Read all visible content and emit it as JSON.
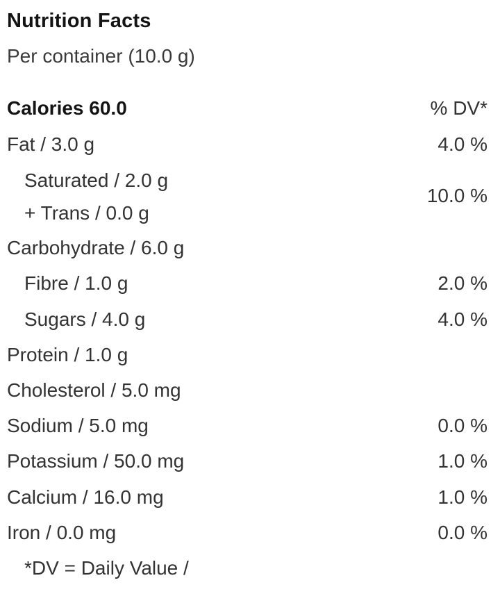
{
  "title": "Nutrition Facts",
  "serving": "Per container (10.0 g)",
  "calories": {
    "label": "Calories 60.0",
    "dv_header": "% DV*"
  },
  "fat": {
    "label": "Fat / 3.0 g",
    "dv": "4.0 %"
  },
  "saturated_trans": {
    "saturated": "Saturated / 2.0 g",
    "trans": "+ Trans / 0.0 g",
    "dv": "10.0 %"
  },
  "carbohydrate": {
    "label": "Carbohydrate / 6.0 g",
    "dv": ""
  },
  "fibre": {
    "label": "Fibre / 1.0 g",
    "dv": "2.0 %"
  },
  "sugars": {
    "label": "Sugars / 4.0 g",
    "dv": "4.0 %"
  },
  "protein": {
    "label": "Protein / 1.0 g",
    "dv": ""
  },
  "cholesterol": {
    "label": "Cholesterol / 5.0 mg",
    "dv": ""
  },
  "sodium": {
    "label": "Sodium / 5.0 mg",
    "dv": "0.0 %"
  },
  "potassium": {
    "label": "Potassium / 50.0 mg",
    "dv": "1.0 %"
  },
  "calcium": {
    "label": "Calcium / 16.0 mg",
    "dv": "1.0 %"
  },
  "iron": {
    "label": "Iron / 0.0 mg",
    "dv": "0.0 %"
  },
  "footnote": "*DV = Daily Value /"
}
